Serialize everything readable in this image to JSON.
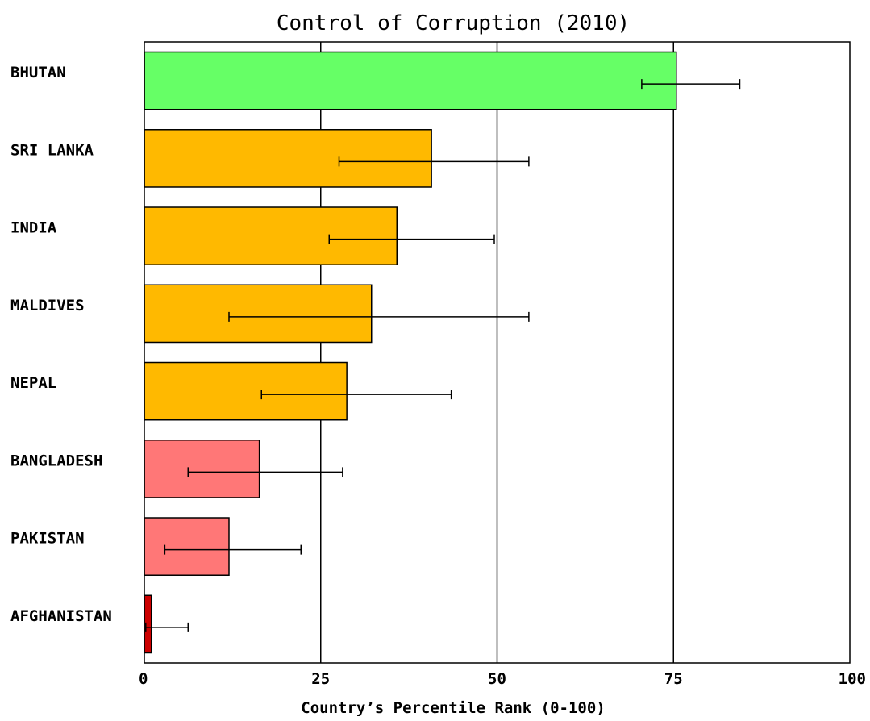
{
  "chart_data": {
    "type": "bar",
    "orientation": "horizontal",
    "title": "Control of Corruption (2010)",
    "xlabel": "Country’s Percentile Rank (0-100)",
    "ylabel": "",
    "xlim": [
      0,
      100
    ],
    "xticks": [
      0,
      25,
      50,
      75,
      100
    ],
    "grid": true,
    "categories": [
      "BHUTAN",
      "SRI LANKA",
      "INDIA",
      "MALDIVES",
      "NEPAL",
      "BANGLADESH",
      "PAKISTAN",
      "AFGHANISTAN"
    ],
    "values": [
      75.4,
      40.7,
      35.8,
      32.2,
      28.7,
      16.3,
      12.0,
      1.0
    ],
    "error_low": [
      70.5,
      27.6,
      26.2,
      12.0,
      16.6,
      6.2,
      2.9,
      0.2
    ],
    "error_high": [
      84.4,
      54.5,
      49.6,
      54.5,
      43.5,
      28.1,
      22.2,
      6.2
    ],
    "bar_colors": [
      "#66ff66",
      "#ffb900",
      "#ffb900",
      "#ffb900",
      "#ffb900",
      "#ff7777",
      "#ff7777",
      "#cc0000"
    ]
  }
}
